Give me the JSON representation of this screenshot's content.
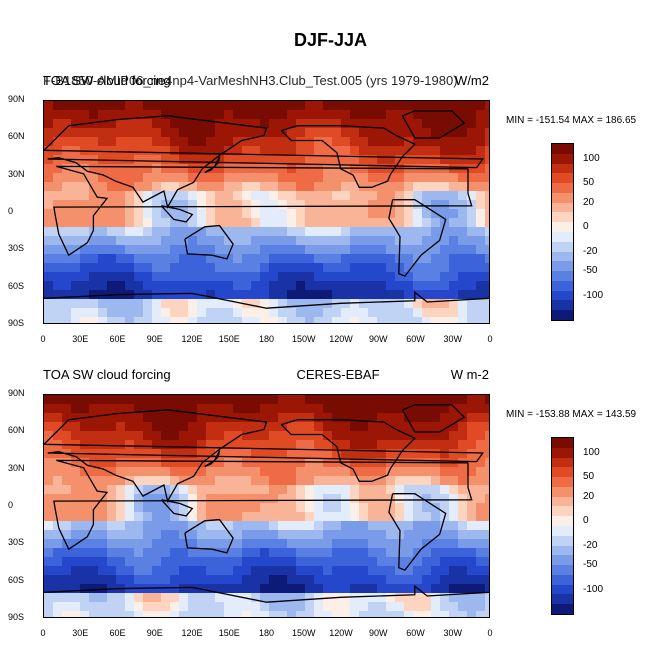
{
  "title": "DJF-JJA",
  "colors": {
    "scale": [
      "#0d1a78",
      "#1933a6",
      "#2547cc",
      "#3d63db",
      "#5a80e3",
      "#7a9ce8",
      "#9db8ef",
      "#c1d3f5",
      "#e3ecfa",
      "#fcefe7",
      "#fcd4c0",
      "#f9b396",
      "#f5906c",
      "#ef6b46",
      "#e04a25",
      "#c22e12",
      "#9b1605",
      "#780c03"
    ],
    "land": "#000000",
    "ice": "#f2f2f2"
  },
  "panels": [
    {
      "left_label": "TOA SW cloud forcing",
      "left_label_overlay": "F-B1850-AMIP06_ne4np4-VarMeshNH3.Club_Test.005 (yrs 1979-1980)",
      "center_label": "",
      "right_label": "W/m2",
      "minmax": "MIN = -151.54 MAX = 186.65",
      "min": -151.54,
      "max": 186.65
    },
    {
      "left_label": "TOA SW cloud forcing",
      "left_label_overlay": "",
      "center_label": "CERES-EBAF",
      "right_label": "W m-2",
      "minmax": "MIN = -153.88 MAX = 143.59",
      "min": -153.88,
      "max": 143.59
    }
  ],
  "axes": {
    "lat_ticks": [
      "90N",
      "60N",
      "30N",
      "0",
      "30S",
      "60S",
      "90S"
    ],
    "lon_ticks": [
      "0",
      "30E",
      "60E",
      "90E",
      "120E",
      "150E",
      "180",
      "150W",
      "120W",
      "90W",
      "60W",
      "30W",
      "0"
    ]
  },
  "colorbar_labels": [
    "100",
    "50",
    "20",
    "0",
    "-20",
    "-50",
    "-100"
  ]
}
